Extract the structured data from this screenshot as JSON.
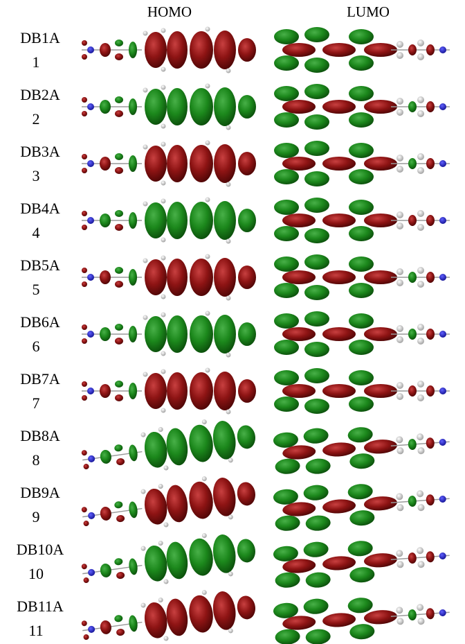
{
  "headers": [
    "HOMO",
    "LUMO"
  ],
  "rows": [
    {
      "name": "DB1A",
      "number": 1
    },
    {
      "name": "DB2A",
      "number": 2
    },
    {
      "name": "DB3A",
      "number": 3
    },
    {
      "name": "DB4A",
      "number": 4
    },
    {
      "name": "DB5A",
      "number": 5
    },
    {
      "name": "DB6A",
      "number": 6
    },
    {
      "name": "DB7A",
      "number": 7
    },
    {
      "name": "DB8A",
      "number": 8
    },
    {
      "name": "DB9A",
      "number": 9
    },
    {
      "name": "DB10A",
      "number": 10
    },
    {
      "name": "DB11A",
      "number": 11
    }
  ]
}
